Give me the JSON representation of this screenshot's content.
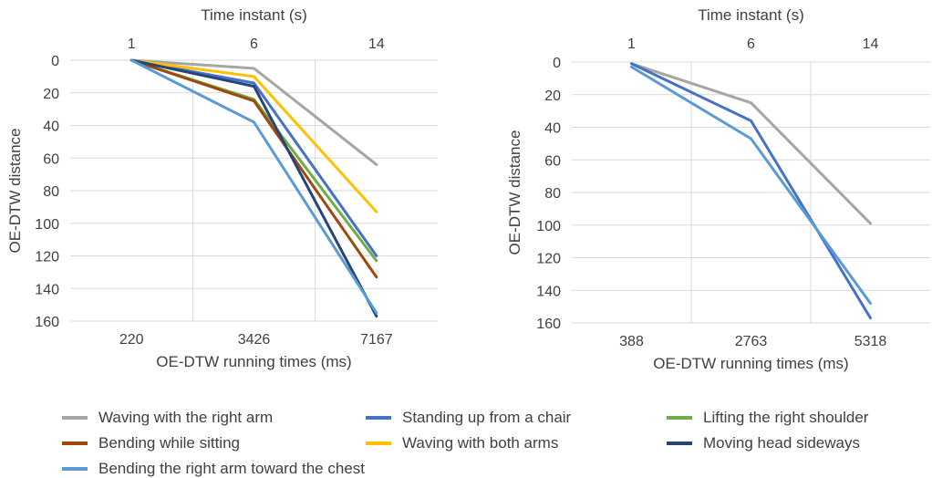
{
  "chart_data": [
    {
      "type": "line",
      "top_axis_label": "Time instant (s)",
      "top_tick_labels": [
        "1",
        "6",
        "14"
      ],
      "xlabel": "OE-DTW running times (ms)",
      "categories": [
        "220",
        "3426",
        "7167"
      ],
      "ylabel": "OE-DTW distance",
      "ylim": [
        0,
        160
      ],
      "y_inverted": true,
      "y_ticks": [
        "0",
        "20",
        "40",
        "60",
        "80",
        "100",
        "120",
        "140",
        "160"
      ],
      "grid": "vertical",
      "series": [
        {
          "name": "Waving with the right arm",
          "color": "#A5A5A5",
          "values": [
            0,
            5,
            64
          ]
        },
        {
          "name": "Standing up from a chair",
          "color": "#4472C4",
          "values": [
            0,
            14,
            120
          ]
        },
        {
          "name": "Lifting the right shoulder",
          "color": "#70AD47",
          "values": [
            0,
            24,
            123
          ]
        },
        {
          "name": "Bending while sitting",
          "color": "#9E480E",
          "values": [
            0,
            25,
            133
          ]
        },
        {
          "name": "Waving with both arms",
          "color": "#FFC000",
          "values": [
            0,
            10,
            93
          ]
        },
        {
          "name": "Moving head sideways",
          "color": "#264478",
          "values": [
            0,
            16,
            157
          ]
        },
        {
          "name": "Bending the right arm toward the chest",
          "color": "#5B9BD5",
          "values": [
            0,
            38,
            155
          ]
        }
      ]
    },
    {
      "type": "line",
      "top_axis_label": "Time instant (s)",
      "top_tick_labels": [
        "1",
        "6",
        "14"
      ],
      "xlabel": "OE-DTW running times (ms)",
      "categories": [
        "388",
        "2763",
        "5318"
      ],
      "ylabel": "OE-DTW distance",
      "ylim": [
        0,
        160
      ],
      "y_inverted": true,
      "y_ticks": [
        "0",
        "20",
        "40",
        "60",
        "80",
        "100",
        "120",
        "140",
        "160"
      ],
      "grid": "vertical",
      "series": [
        {
          "name": "Waving with the right arm",
          "color": "#A5A5A5",
          "values": [
            1,
            25,
            99
          ]
        },
        {
          "name": "Standing up from a chair",
          "color": "#4472C4",
          "values": [
            1,
            36,
            157
          ]
        },
        {
          "name": "Bending the right arm toward the chest",
          "color": "#5B9BD5",
          "values": [
            3,
            47,
            148
          ]
        }
      ]
    }
  ],
  "legend": [
    {
      "label": "Waving with the right arm",
      "color": "#A5A5A5"
    },
    {
      "label": "Standing up from a chair",
      "color": "#4472C4"
    },
    {
      "label": "Lifting the right shoulder",
      "color": "#70AD47"
    },
    {
      "label": "Bending while sitting",
      "color": "#9E480E"
    },
    {
      "label": "Waving with both arms",
      "color": "#FFC000"
    },
    {
      "label": "Moving head sideways",
      "color": "#264478"
    },
    {
      "label": "Bending the right arm toward the chest",
      "color": "#5B9BD5"
    }
  ]
}
